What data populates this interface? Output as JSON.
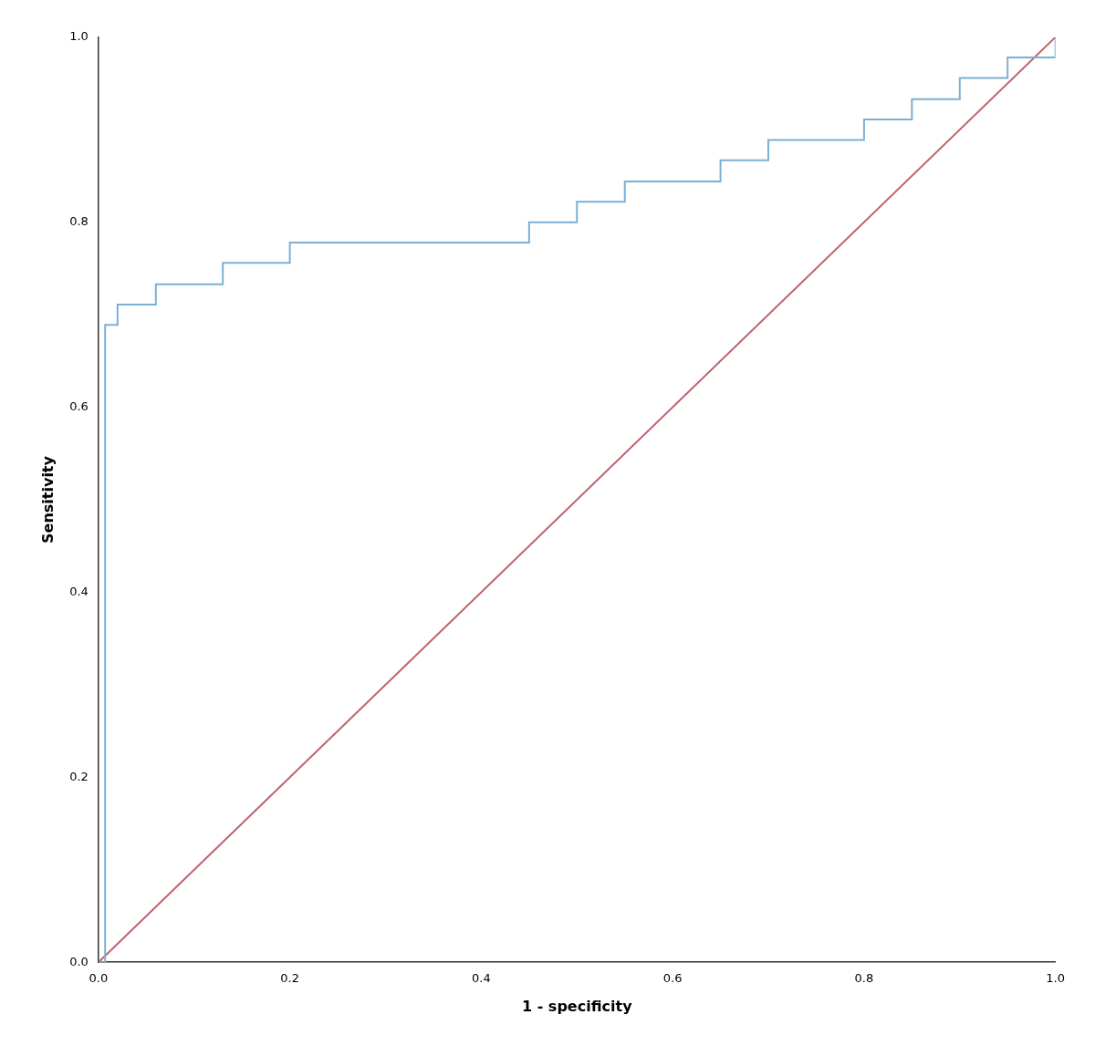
{
  "chart_data": {
    "type": "line",
    "x_label": "1 - specificity",
    "y_label": "Sensitivity",
    "series": [
      {
        "x": [
          0.0,
          0.007,
          0.007,
          0.007,
          0.013,
          0.02,
          0.02,
          0.04,
          0.06,
          0.08,
          0.1,
          0.13,
          0.16,
          0.2,
          0.25,
          0.3,
          0.35,
          0.4,
          0.45,
          0.5,
          0.55,
          0.6,
          0.65,
          0.7,
          0.75,
          0.8,
          0.85,
          0.9,
          0.95,
          1.0
        ],
        "values": [
          0.0,
          0.0,
          0.511,
          0.689,
          0.689,
          0.689,
          0.711,
          0.711,
          0.733,
          0.733,
          0.733,
          0.756,
          0.756,
          0.778,
          0.778,
          0.778,
          0.778,
          0.778,
          0.8,
          0.822,
          0.844,
          0.844,
          0.867,
          0.889,
          0.889,
          0.911,
          0.933,
          0.956,
          0.978,
          1.0
        ],
        "color": "#7bafd4",
        "line_style": "steps"
      },
      {
        "x": [
          0.0,
          1.0
        ],
        "values": [
          0.0,
          1.0
        ],
        "color": "#c0636b",
        "line_style": "solid"
      }
    ],
    "xlim": [
      0.0,
      1.0
    ],
    "ylim": [
      0.0,
      1.0
    ],
    "xticks": [
      {
        "value": 0.0,
        "label": "0.0"
      },
      0.2,
      0.4,
      0.6,
      0.8,
      {
        "value": 1.0,
        "label": "1.0"
      }
    ],
    "yticks": [
      {
        "value": 0.0,
        "label": "0.0"
      },
      0.2,
      0.4,
      0.6,
      0.8,
      {
        "value": 1.0,
        "label": "1.0"
      }
    ],
    "grid": false
  }
}
